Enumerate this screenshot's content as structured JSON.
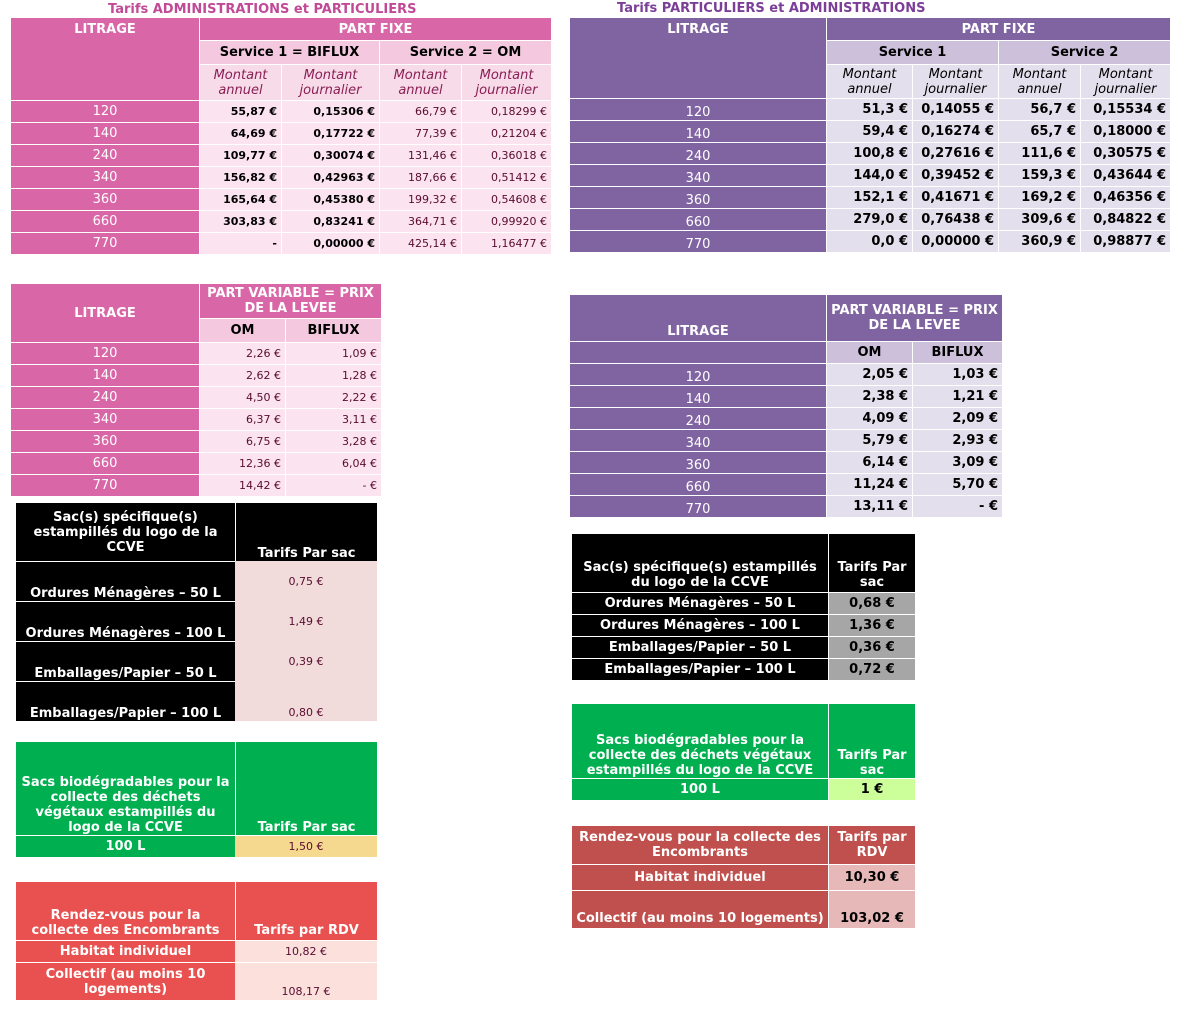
{
  "left": {
    "title": "Tarifs  ADMINISTRATIONS et PARTICULIERS",
    "fixed": {
      "litrage_label": "LITRAGE",
      "part_fixe_label": "PART FIXE",
      "service1": "Service 1 = BIFLUX",
      "service2": "Service 2 = OM",
      "montant_annuel": "Montant annuel",
      "montant_journalier": "Montant journalier",
      "rows": [
        {
          "litrage": "120",
          "s1a": "55,87 €",
          "s1j": "0,15306 €",
          "s2a": "66,79 €",
          "s2j": "0,18299 €"
        },
        {
          "litrage": "140",
          "s1a": "64,69 €",
          "s1j": "0,17722 €",
          "s2a": "77,39 €",
          "s2j": "0,21204 €"
        },
        {
          "litrage": "240",
          "s1a": "109,77 €",
          "s1j": "0,30074 €",
          "s2a": "131,46 €",
          "s2j": "0,36018 €"
        },
        {
          "litrage": "340",
          "s1a": "156,82 €",
          "s1j": "0,42963 €",
          "s2a": "187,66 €",
          "s2j": "0,51412 €"
        },
        {
          "litrage": "360",
          "s1a": "165,64 €",
          "s1j": "0,45380 €",
          "s2a": "199,32 €",
          "s2j": "0,54608 €"
        },
        {
          "litrage": "660",
          "s1a": "303,83 €",
          "s1j": "0,83241 €",
          "s2a": "364,71 €",
          "s2j": "0,99920 €"
        },
        {
          "litrage": "770",
          "s1a": "-",
          "s1j": "0,00000 €",
          "s2a": "425,14 €",
          "s2j": "1,16477 €"
        }
      ]
    },
    "variable": {
      "litrage_label": "LITRAGE",
      "header": "PART VARIABLE = PRIX DE LA LEVEE",
      "om": "OM",
      "biflux": "BIFLUX",
      "rows": [
        {
          "litrage": "120",
          "om": "2,26 €",
          "biflux": "1,09 €"
        },
        {
          "litrage": "140",
          "om": "2,62 €",
          "biflux": "1,28 €"
        },
        {
          "litrage": "240",
          "om": "4,50 €",
          "biflux": "2,22 €"
        },
        {
          "litrage": "340",
          "om": "6,37 €",
          "biflux": "3,11 €"
        },
        {
          "litrage": "360",
          "om": "6,75 €",
          "biflux": "3,28 €"
        },
        {
          "litrage": "660",
          "om": "12,36 €",
          "biflux": "6,04 €"
        },
        {
          "litrage": "770",
          "om": "14,42 €",
          "biflux": "-  €"
        }
      ]
    },
    "sacs": {
      "header": "Sac(s) spécifique(s) estampillés du logo de la CCVE",
      "price_header": "Tarifs Par sac",
      "rows": [
        {
          "label": "Ordures Ménagères – 50 L",
          "price": "0,75 €"
        },
        {
          "label": "Ordures Ménagères – 100 L",
          "price": "1,49 €"
        },
        {
          "label": "Emballages/Papier – 50 L",
          "price": "0,39 €"
        },
        {
          "label": "Emballages/Papier – 100 L",
          "price": "0,80 €"
        }
      ]
    },
    "bio": {
      "header": "Sacs biodégradables pour la collecte des déchets végétaux estampillés du logo de la CCVE",
      "price_header": "Tarifs Par sac",
      "label": "100 L",
      "price": "1,50 €"
    },
    "rdv": {
      "header": "Rendez-vous pour la collecte des Encombrants",
      "price_header": "Tarifs par RDV",
      "rows": [
        {
          "label": "Habitat individuel",
          "price": "10,82 €"
        },
        {
          "label": "Collectif (au moins 10 logements)",
          "price": "108,17 €"
        }
      ]
    }
  },
  "right": {
    "title": "Tarifs PARTICULIERS et ADMINISTRATIONS",
    "fixed": {
      "litrage_label": "LITRAGE",
      "part_fixe_label": "PART FIXE",
      "service1": "Service 1",
      "service2": "Service 2",
      "montant_annuel": "Montant annuel",
      "montant_journalier": "Montant journalier",
      "rows": [
        {
          "litrage": "120",
          "s1a": "51,3 €",
          "s1j": "0,14055 €",
          "s2a": "56,7 €",
          "s2j": "0,15534 €"
        },
        {
          "litrage": "140",
          "s1a": "59,4 €",
          "s1j": "0,16274 €",
          "s2a": "65,7 €",
          "s2j": "0,18000 €"
        },
        {
          "litrage": "240",
          "s1a": "100,8 €",
          "s1j": "0,27616 €",
          "s2a": "111,6 €",
          "s2j": "0,30575 €"
        },
        {
          "litrage": "340",
          "s1a": "144,0 €",
          "s1j": "0,39452 €",
          "s2a": "159,3 €",
          "s2j": "0,43644 €"
        },
        {
          "litrage": "360",
          "s1a": "152,1 €",
          "s1j": "0,41671 €",
          "s2a": "169,2 €",
          "s2j": "0,46356 €"
        },
        {
          "litrage": "660",
          "s1a": "279,0 €",
          "s1j": "0,76438 €",
          "s2a": "309,6 €",
          "s2j": "0,84822 €"
        },
        {
          "litrage": "770",
          "s1a": "0,0 €",
          "s1j": "0,00000 €",
          "s2a": "360,9 €",
          "s2j": "0,98877 €"
        }
      ]
    },
    "variable": {
      "litrage_label": "LITRAGE",
      "header": "PART VARIABLE = PRIX DE LA LEVEE",
      "om": "OM",
      "biflux": "BIFLUX",
      "rows": [
        {
          "litrage": "120",
          "om": "2,05 €",
          "biflux": "1,03 €"
        },
        {
          "litrage": "140",
          "om": "2,38 €",
          "biflux": "1,21 €"
        },
        {
          "litrage": "240",
          "om": "4,09 €",
          "biflux": "2,09 €"
        },
        {
          "litrage": "340",
          "om": "5,79 €",
          "biflux": "2,93 €"
        },
        {
          "litrage": "360",
          "om": "6,14 €",
          "biflux": "3,09 €"
        },
        {
          "litrage": "660",
          "om": "11,24 €",
          "biflux": "5,70 €"
        },
        {
          "litrage": "770",
          "om": "13,11 €",
          "biflux": "-  €"
        }
      ]
    },
    "sacs": {
      "header": "Sac(s) spécifique(s) estampillés du logo de la CCVE",
      "price_header": "Tarifs Par sac",
      "rows": [
        {
          "label": "Ordures Ménagères – 50 L",
          "price": "0,68 €"
        },
        {
          "label": "Ordures Ménagères – 100 L",
          "price": "1,36 €"
        },
        {
          "label": "Emballages/Papier – 50 L",
          "price": "0,36 €"
        },
        {
          "label": "Emballages/Papier – 100 L",
          "price": "0,72 €"
        }
      ]
    },
    "bio": {
      "header": "Sacs biodégradables pour la collecte des déchets végétaux estampillés du logo de la CCVE",
      "price_header": "Tarifs Par sac",
      "label": "100 L",
      "price": "1 €"
    },
    "rdv": {
      "header": "Rendez-vous pour la collecte des Encombrants",
      "price_header": "Tarifs par RDV",
      "rows": [
        {
          "label": "Habitat individuel",
          "price": "10,30 €"
        },
        {
          "label": "Collectif (au moins 10 logements)",
          "price": "103,02 €"
        }
      ]
    }
  }
}
